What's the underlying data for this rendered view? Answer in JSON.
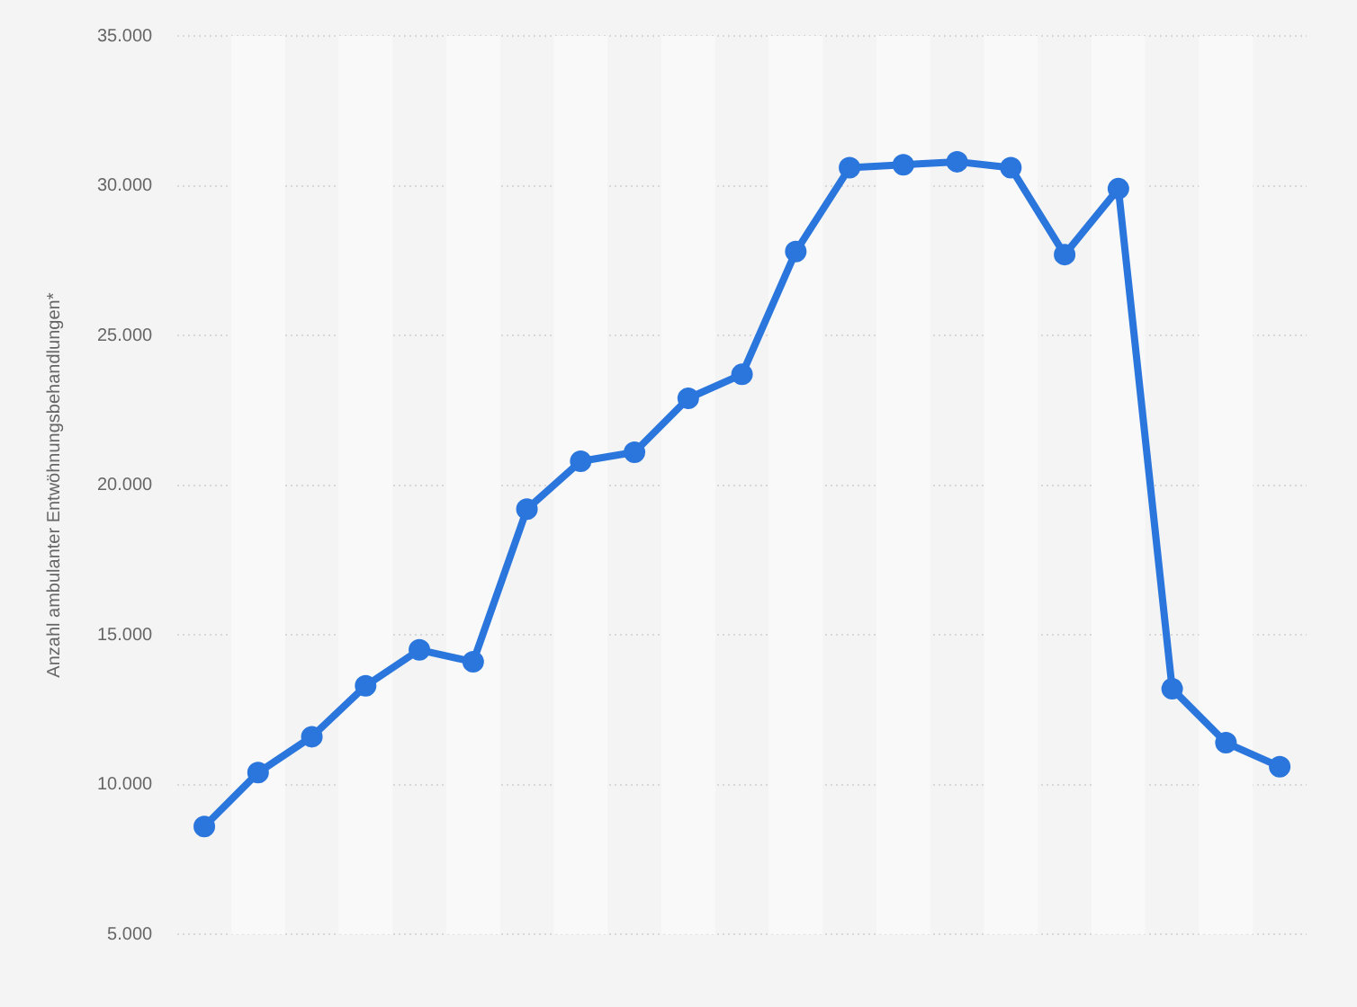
{
  "chart_data": {
    "type": "line",
    "ylabel": "Anzahl ambulanter Entwöhnungsbehandlungen*",
    "categories": [
      null,
      null,
      null,
      null,
      null,
      null,
      null,
      null,
      null,
      null,
      null,
      null,
      null,
      null,
      null,
      null,
      null,
      null,
      null,
      null,
      null
    ],
    "series": [
      {
        "color": "#2a76dd",
        "values": [
          8600,
          10400,
          11600,
          13300,
          14500,
          14100,
          19200,
          20800,
          21100,
          22900,
          23700,
          27800,
          30600,
          30700,
          30800,
          30600,
          27700,
          29900,
          13200,
          11400,
          10600
        ]
      }
    ],
    "ylim": [
      5000,
      35000
    ],
    "yticks": [
      {
        "value": 5000,
        "label": "5.000"
      },
      {
        "value": 10000,
        "label": "10.000"
      },
      {
        "value": 15000,
        "label": "15.000"
      },
      {
        "value": 20000,
        "label": "20.000"
      },
      {
        "value": 25000,
        "label": "25.000"
      },
      {
        "value": 30000,
        "label": "30.000"
      },
      {
        "value": 35000,
        "label": "35.000"
      }
    ],
    "grid": "y",
    "legend": false,
    "marker": "circle",
    "line_style": "solid"
  }
}
